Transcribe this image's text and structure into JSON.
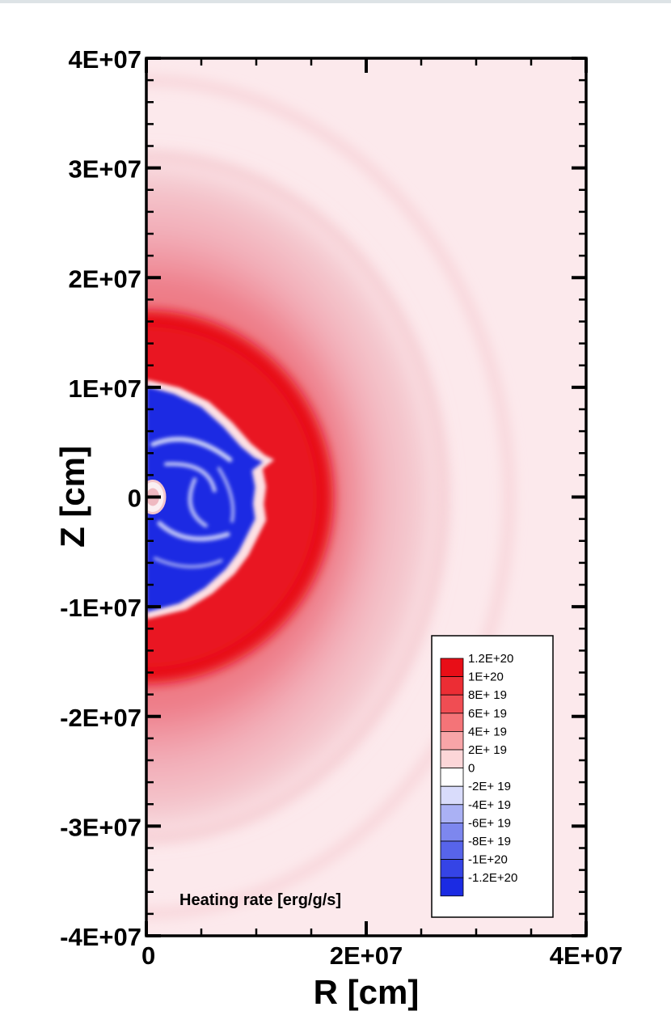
{
  "chart_data": {
    "type": "heatmap",
    "title": "",
    "xlabel": "R [cm]",
    "ylabel": "Z [cm]",
    "xlim": [
      0,
      40000000
    ],
    "ylim": [
      -40000000,
      40000000
    ],
    "x_ticks": [
      {
        "value": 0,
        "label": "0"
      },
      {
        "value": 20000000,
        "label": "2E+07"
      },
      {
        "value": 40000000,
        "label": "4E+07"
      }
    ],
    "y_ticks": [
      {
        "value": 40000000,
        "label": "4E+07"
      },
      {
        "value": 30000000,
        "label": "3E+07"
      },
      {
        "value": 20000000,
        "label": "2E+07"
      },
      {
        "value": 10000000,
        "label": "1E+07"
      },
      {
        "value": 0,
        "label": "0"
      },
      {
        "value": -10000000,
        "label": "-1E+07"
      },
      {
        "value": -20000000,
        "label": "-2E+07"
      },
      {
        "value": -30000000,
        "label": "-3E+07"
      },
      {
        "value": -40000000,
        "label": "-4E+07"
      }
    ],
    "colorbar": {
      "title": "Heating rate [erg/g/s]",
      "placement": "bottom-right",
      "levels": [
        {
          "value": 1.2e+20,
          "label": "1.2E+20",
          "color": "#e80e17"
        },
        {
          "value": 1e+20,
          "label": "1E+20",
          "color": "#ec2d34"
        },
        {
          "value": 8e+19,
          "label": "8E+ 19",
          "color": "#f04d53"
        },
        {
          "value": 6e+19,
          "label": "6E+ 19",
          "color": "#f47478"
        },
        {
          "value": 4e+19,
          "label": "4E+ 19",
          "color": "#f8a5a8"
        },
        {
          "value": 2e+19,
          "label": "2E+ 19",
          "color": "#fcd6d8"
        },
        {
          "value": 0,
          "label": "0",
          "color": "#ffffff"
        },
        {
          "value": -2e+19,
          "label": "-2E+ 19",
          "color": "#d9dcfb"
        },
        {
          "value": -4e+19,
          "label": "-4E+ 19",
          "color": "#aab1f4"
        },
        {
          "value": -6e+19,
          "label": "-6E+ 19",
          "color": "#7d87ee"
        },
        {
          "value": -8e+19,
          "label": "-8E+ 19",
          "color": "#5764ea"
        },
        {
          "value": -1e+20,
          "label": "-1E+20",
          "color": "#3544e6"
        },
        {
          "value": -1.2e+20,
          "label": "-1.2E+20",
          "color": "#1b2be3"
        }
      ]
    },
    "field_regions": [
      {
        "region": "negative core",
        "r_max": 10500000,
        "z_range": [
          -10500000,
          10000000
        ],
        "approx_value": -1.2e+20
      },
      {
        "region": "strong heating shell",
        "r_max": 17000000,
        "z_range": [
          -17000000,
          17000000
        ],
        "approx_value": 1.2e+20
      },
      {
        "region": "outer heating halo",
        "r_max": 40000000,
        "z_range": [
          -40000000,
          40000000
        ],
        "approx_value": 1.5e+19
      }
    ],
    "grid": false
  }
}
